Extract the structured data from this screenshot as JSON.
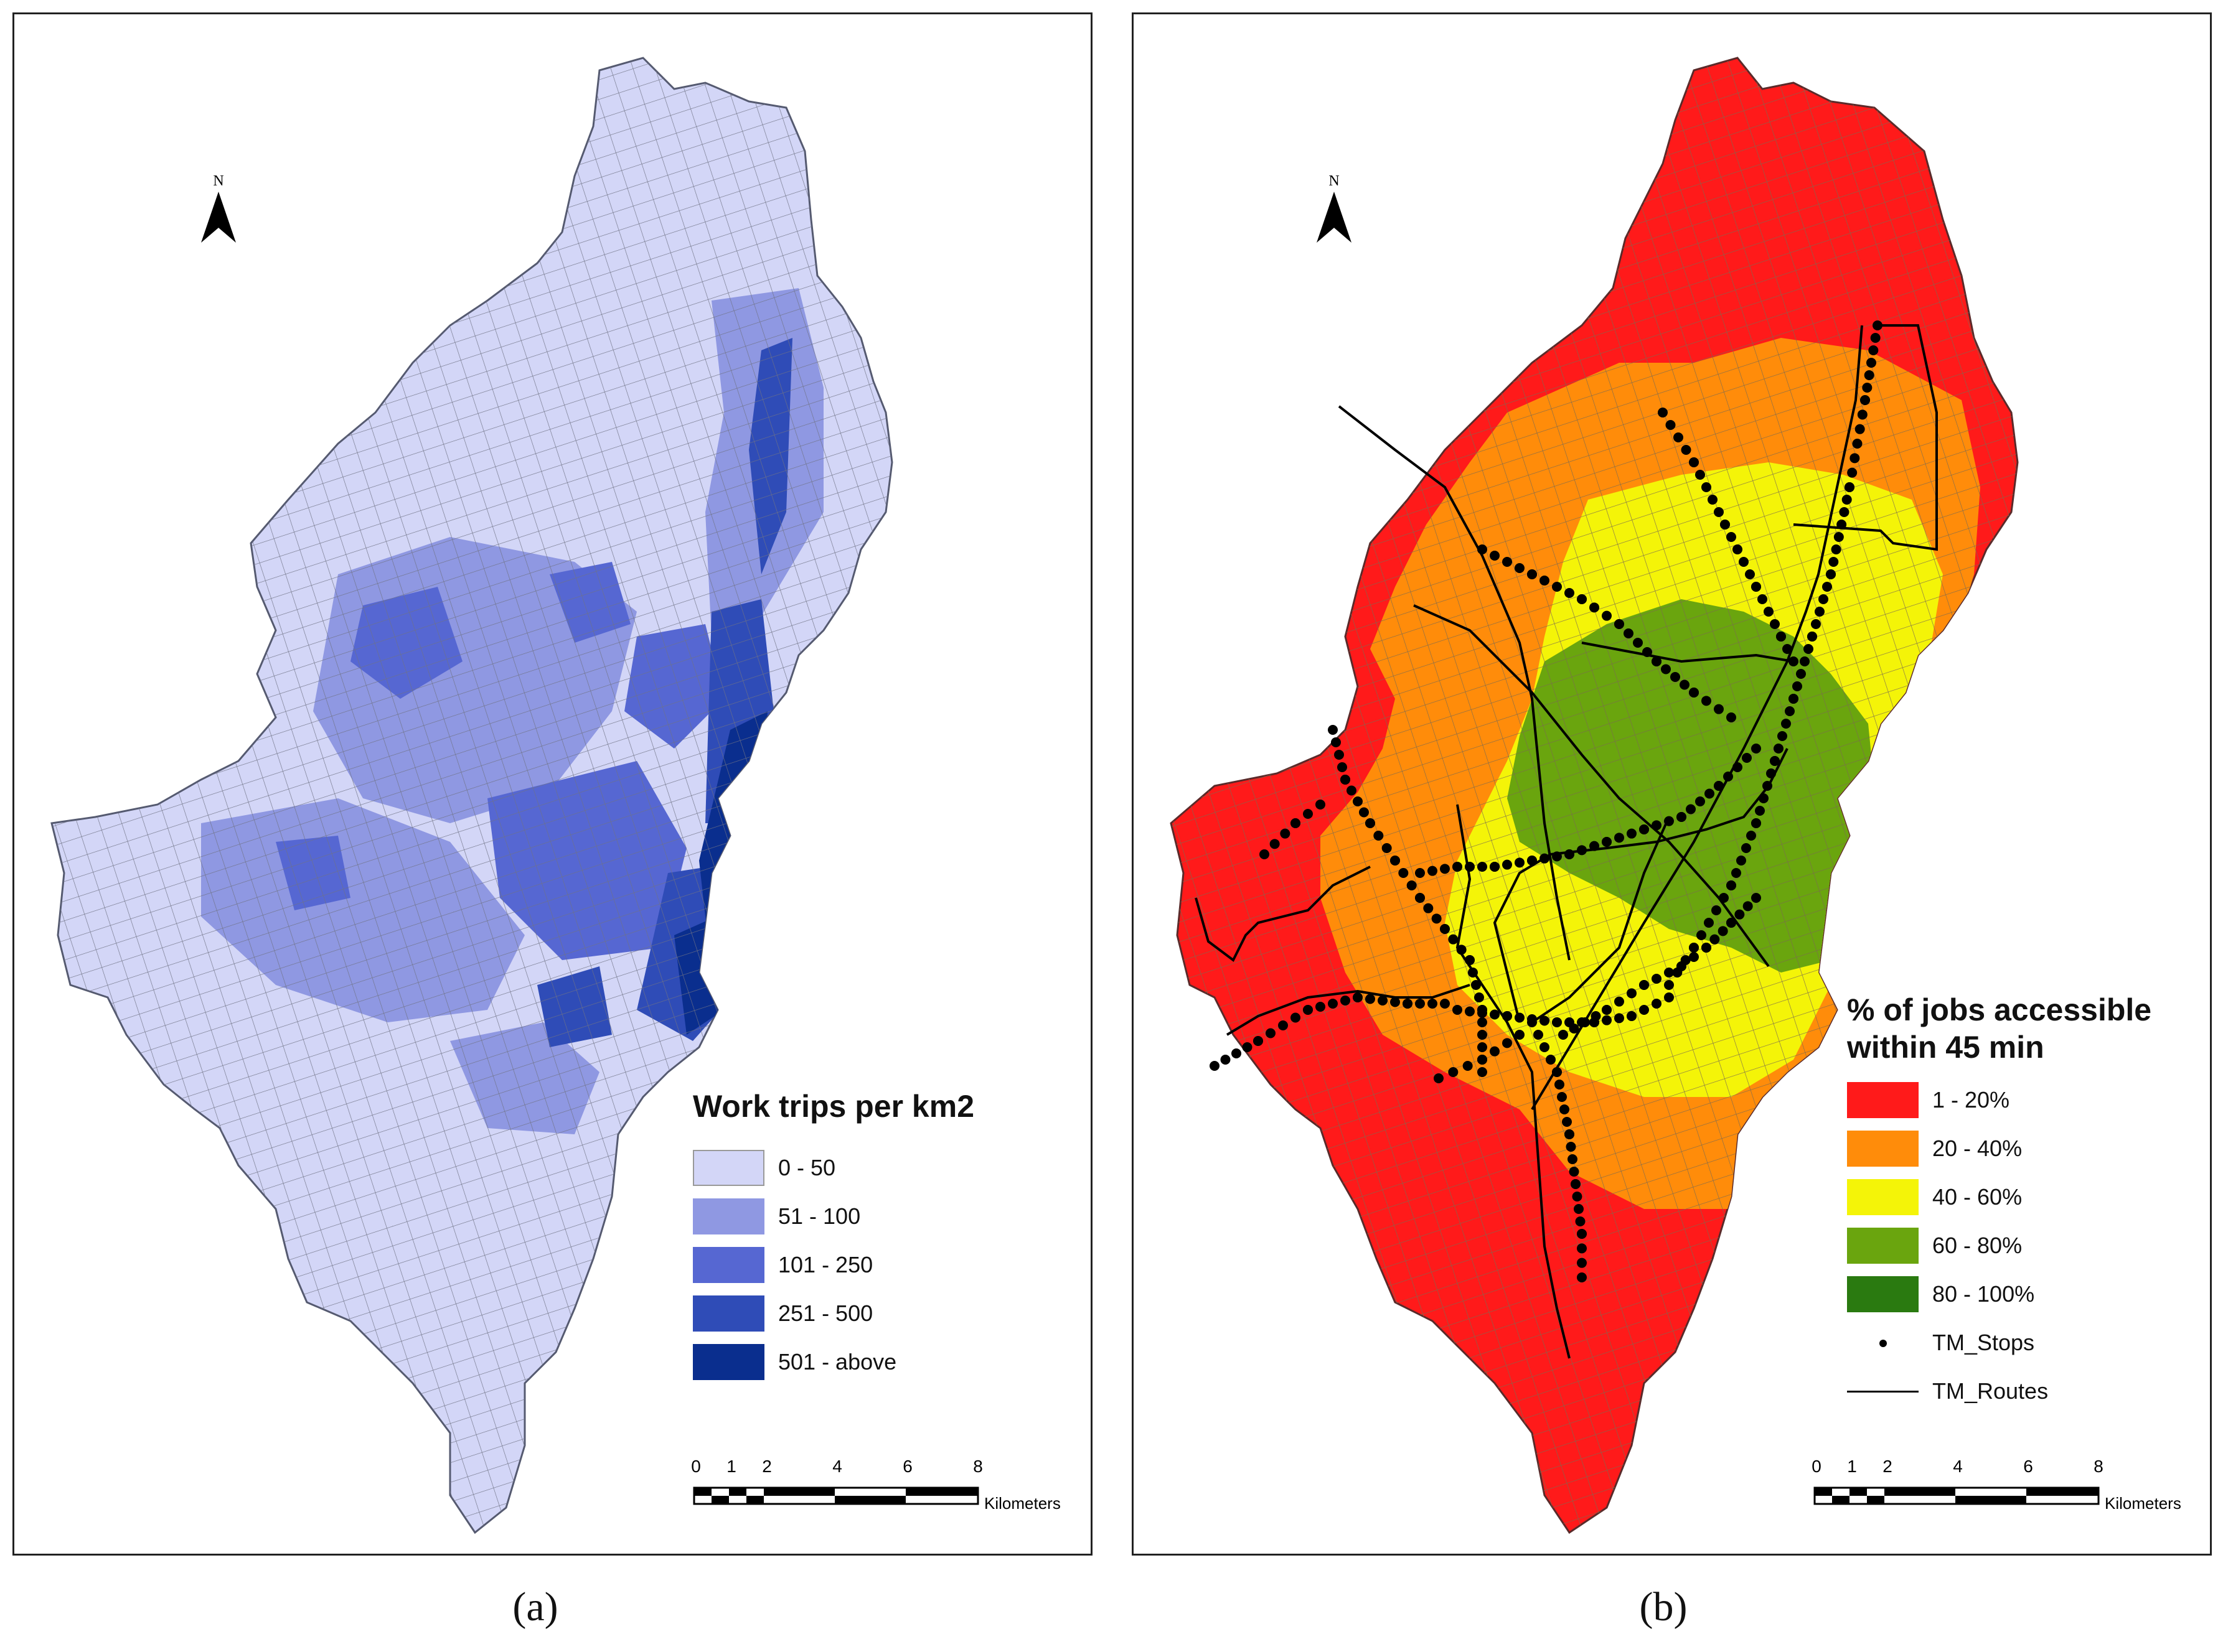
{
  "panel_a": {
    "caption": "(a)",
    "north_label": "N",
    "legend": {
      "title": "Work trips per km2",
      "items": [
        {
          "label": "0 - 50",
          "color": "#d3d6f7"
        },
        {
          "label": "51 - 100",
          "color": "#8f98e2"
        },
        {
          "label": "101 - 250",
          "color": "#5667d2"
        },
        {
          "label": "251 - 500",
          "color": "#2f4cb7"
        },
        {
          "label": "501 - above",
          "color": "#0a2e8e"
        }
      ]
    },
    "scalebar": {
      "ticks": [
        "0",
        "1",
        "2",
        "4",
        "6",
        "8"
      ],
      "unit": "Kilometers"
    }
  },
  "panel_b": {
    "caption": "(b)",
    "north_label": "N",
    "legend": {
      "title_line1": "% of jobs accessible",
      "title_line2": "within 45 min",
      "items": [
        {
          "label": "1 - 20%",
          "color": "#ff1a1a"
        },
        {
          "label": "20 - 40%",
          "color": "#ff8c0a"
        },
        {
          "label": "40 - 60%",
          "color": "#f4f408"
        },
        {
          "label": "60 - 80%",
          "color": "#6aa50e"
        },
        {
          "label": "80 - 100%",
          "color": "#2a7a10"
        }
      ],
      "stops_label": "TM_Stops",
      "routes_label": "TM_Routes"
    },
    "scalebar": {
      "ticks": [
        "0",
        "1",
        "2",
        "4",
        "6",
        "8"
      ],
      "unit": "Kilometers"
    }
  }
}
